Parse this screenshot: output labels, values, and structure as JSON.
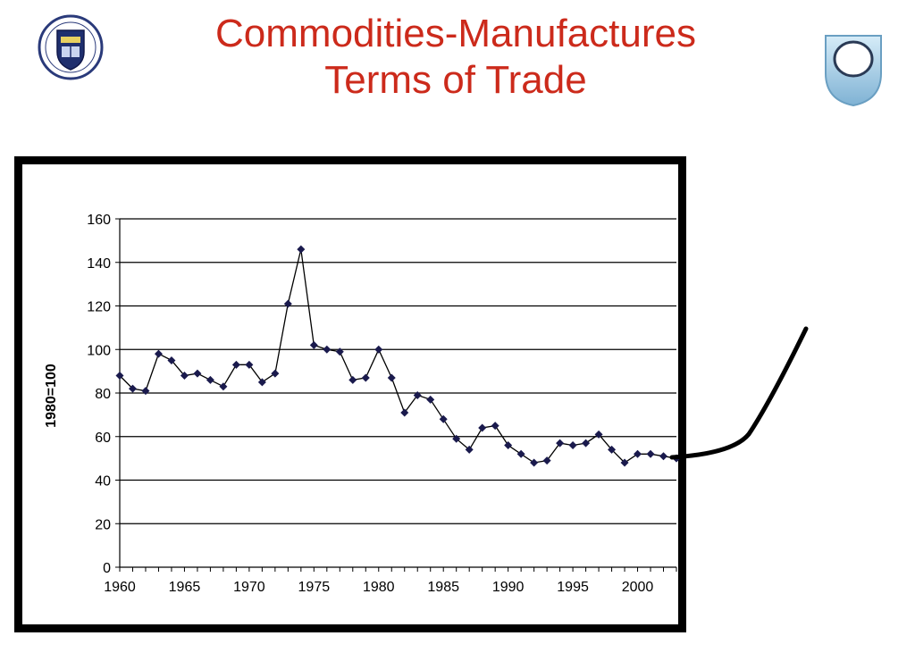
{
  "slide": {
    "title_line1": "Commodities-Manufactures",
    "title_line2": "Terms of Trade",
    "accent_color": "#cc2a1b",
    "logo_left_icon": "university-crest-icon",
    "logo_right_icon": "shield-logo-icon"
  },
  "chart_data": {
    "type": "line",
    "title": "",
    "xlabel": "",
    "ylabel": "1980=100",
    "xlim": [
      1960,
      2003
    ],
    "ylim": [
      0,
      160
    ],
    "x_ticks": [
      1960,
      1965,
      1970,
      1975,
      1980,
      1985,
      1990,
      1995,
      2000
    ],
    "y_ticks": [
      0,
      20,
      40,
      60,
      80,
      100,
      120,
      140,
      160
    ],
    "grid": "horizontal",
    "series": [
      {
        "name": "",
        "color": "#000000",
        "marker_color": "#1a1a4d",
        "x": [
          1960,
          1961,
          1962,
          1963,
          1964,
          1965,
          1966,
          1967,
          1968,
          1969,
          1970,
          1971,
          1972,
          1973,
          1974,
          1975,
          1976,
          1977,
          1978,
          1979,
          1980,
          1981,
          1982,
          1983,
          1984,
          1985,
          1986,
          1987,
          1988,
          1989,
          1990,
          1991,
          1992,
          1993,
          1994,
          1995,
          1996,
          1997,
          1998,
          1999,
          2000,
          2001,
          2002,
          2003
        ],
        "y": [
          88,
          82,
          81,
          98,
          95,
          88,
          89,
          86,
          83,
          93,
          93,
          85,
          89,
          121,
          146,
          102,
          100,
          99,
          86,
          87,
          100,
          87,
          71,
          79,
          77,
          68,
          59,
          54,
          64,
          65,
          56,
          52,
          48,
          49,
          57,
          56,
          57,
          61,
          54,
          48,
          52,
          52,
          51,
          50
        ]
      }
    ]
  }
}
